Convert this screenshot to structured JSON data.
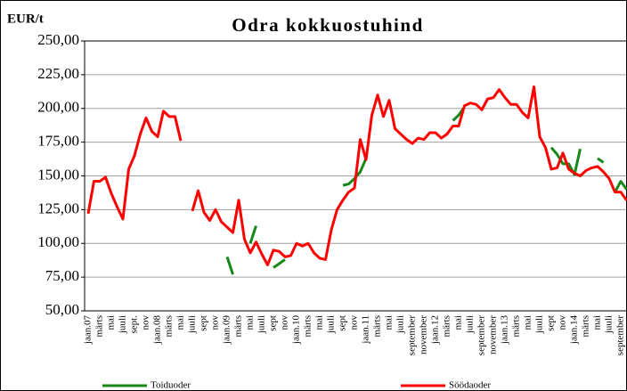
{
  "chart_data": {
    "type": "line",
    "title": "Odra kokkuostuhind",
    "y_label": "EUR/t",
    "categories": [
      "jaan.07",
      null,
      "märts",
      null,
      "mai",
      null,
      "juuli",
      null,
      "sept.",
      null,
      "nov",
      null,
      "jaan.08",
      null,
      "märts",
      null,
      "mai",
      null,
      "juuli",
      null,
      "sept",
      null,
      "nov",
      null,
      "jaan.09",
      null,
      "märts",
      null,
      "mai",
      null,
      "juuli",
      null,
      "sept",
      null,
      "nov",
      null,
      "jaan.10",
      null,
      "märts",
      null,
      "mai",
      null,
      "juuli",
      null,
      "sept",
      null,
      "nov",
      null,
      "jaan.11",
      null,
      "märts",
      null,
      "mai",
      null,
      "juuli",
      null,
      "september",
      null,
      "november",
      null,
      "jaan.12",
      null,
      "märts",
      null,
      "mai",
      null,
      "juuli",
      null,
      "september",
      null,
      "november",
      null,
      "jaan.13",
      null,
      "märts",
      null,
      "mai",
      null,
      "juuli",
      null,
      "sept",
      null,
      "nov",
      null,
      "jaan.14",
      null,
      "märts",
      null,
      "mai",
      null,
      "juuli",
      null,
      "september",
      null
    ],
    "series": [
      {
        "name": "Toiduoder",
        "color": "#178717",
        "values": [
          null,
          null,
          null,
          null,
          null,
          null,
          null,
          null,
          null,
          null,
          null,
          null,
          null,
          null,
          null,
          null,
          null,
          null,
          null,
          null,
          null,
          null,
          null,
          null,
          90,
          77,
          null,
          null,
          100,
          113,
          null,
          null,
          82,
          85,
          88,
          null,
          null,
          null,
          null,
          null,
          null,
          null,
          null,
          null,
          143,
          144,
          148,
          153,
          163,
          null,
          null,
          null,
          null,
          null,
          null,
          null,
          null,
          null,
          null,
          null,
          null,
          null,
          null,
          191,
          195,
          201,
          null,
          null,
          null,
          null,
          null,
          null,
          null,
          null,
          null,
          null,
          null,
          null,
          null,
          null,
          171,
          166,
          159,
          159,
          151,
          170,
          null,
          null,
          163,
          160,
          null,
          138,
          146,
          140
        ]
      },
      {
        "name": "Söödaoder",
        "color": "#ff0000",
        "values": [
          122,
          146,
          146,
          149,
          137,
          127,
          118,
          155,
          165,
          181,
          193,
          183,
          179,
          198,
          194,
          194,
          176,
          null,
          124,
          139,
          123,
          117,
          125,
          116,
          112,
          108,
          132,
          103,
          93,
          101,
          92,
          84,
          95,
          94,
          90,
          91,
          100,
          98,
          100,
          93,
          89,
          88,
          110,
          125,
          132,
          138,
          141,
          177,
          162,
          195,
          210,
          194,
          206,
          185,
          181,
          177,
          174,
          178,
          177,
          182,
          182,
          178,
          181,
          187,
          187,
          202,
          204,
          203,
          199,
          207,
          208,
          214,
          208,
          203,
          203,
          197,
          193,
          216,
          179,
          171,
          155,
          156,
          167,
          155,
          152,
          150,
          154,
          156,
          157,
          153,
          148,
          138,
          138,
          132
        ]
      }
    ],
    "ylim": [
      50,
      250
    ],
    "yticks": [
      {
        "value": 50,
        "label": "50,00"
      },
      {
        "value": 75,
        "label": "75,00"
      },
      {
        "value": 100,
        "label": "100,00"
      },
      {
        "value": 125,
        "label": "125,00"
      },
      {
        "value": 150,
        "label": "150,00"
      },
      {
        "value": 175,
        "label": "175,00"
      },
      {
        "value": 200,
        "label": "200,00"
      },
      {
        "value": 225,
        "label": "225,00"
      },
      {
        "value": 250,
        "label": "250,00"
      }
    ],
    "grid": true,
    "legend": "bottom"
  }
}
